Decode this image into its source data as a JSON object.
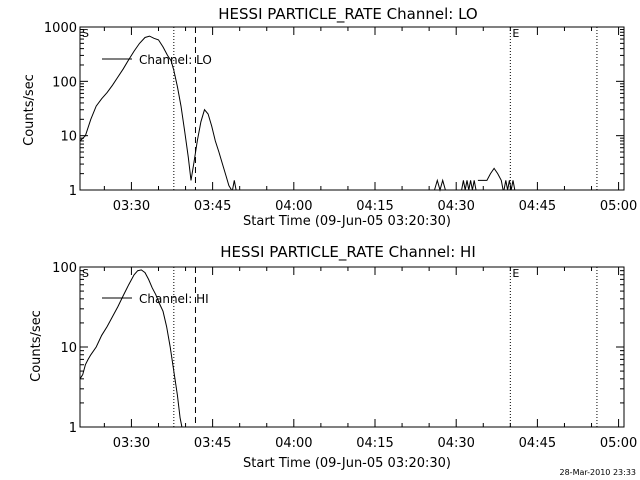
{
  "footer": {
    "timestamp": "28-Mar-2010 23:33"
  },
  "chart_data": [
    {
      "type": "line",
      "title": "HESSI PARTICLE_RATE Channel: LO",
      "xlabel": "Start Time (09-Jun-05 03:20:30)",
      "ylabel": "Counts/sec",
      "y_scale": "log",
      "ylim": [
        1,
        1000
      ],
      "y_ticks": [
        1,
        10,
        100,
        1000
      ],
      "y_tick_labels": [
        "1",
        "10",
        "100",
        "1000"
      ],
      "xlim": [
        "03:20:30",
        "05:01:00"
      ],
      "x_ticks": [
        "03:30",
        "03:45",
        "04:00",
        "04:15",
        "04:30",
        "04:45",
        "05:00"
      ],
      "legend": {
        "label": "Channel: LO",
        "placement": "top-left"
      },
      "markers": [
        {
          "label": "S",
          "x": "03:20:30",
          "style": "none"
        },
        {
          "x": "03:37:50",
          "style": "dotted"
        },
        {
          "x": "03:41:50",
          "style": "dashed"
        },
        {
          "label": "E",
          "x": "04:40:00",
          "style": "dotted"
        },
        {
          "x": "04:56:00",
          "style": "dotted"
        }
      ],
      "series": [
        {
          "segments": [
            [
              [
                "03:20:30",
                8
              ],
              [
                "03:21:30",
                10
              ],
              [
                "03:22:30",
                20
              ],
              [
                "03:23:30",
                35
              ],
              [
                "03:24:30",
                48
              ],
              [
                "03:25:30",
                62
              ],
              [
                "03:26:30",
                85
              ],
              [
                "03:27:30",
                120
              ],
              [
                "03:28:30",
                170
              ],
              [
                "03:29:30",
                250
              ],
              [
                "03:30:30",
                360
              ],
              [
                "03:31:30",
                500
              ],
              [
                "03:32:30",
                640
              ],
              [
                "03:33:20",
                680
              ],
              [
                "03:34:10",
                620
              ],
              [
                "03:35:00",
                580
              ],
              [
                "03:35:50",
                430
              ],
              [
                "03:36:40",
                300
              ],
              [
                "03:37:20",
                240
              ],
              [
                "03:37:50",
                160
              ],
              [
                "03:38:30",
                80
              ],
              [
                "03:39:10",
                35
              ],
              [
                "03:39:50",
                12
              ],
              [
                "03:40:30",
                4
              ],
              [
                "03:41:00",
                1.5
              ],
              [
                "03:41:30",
                3
              ],
              [
                "03:42:10",
                8
              ],
              [
                "03:42:50",
                18
              ],
              [
                "03:43:30",
                30
              ],
              [
                "03:44:10",
                25
              ],
              [
                "03:44:50",
                15
              ],
              [
                "03:45:30",
                8
              ],
              [
                "03:46:10",
                5
              ],
              [
                "03:46:50",
                3
              ],
              [
                "03:47:30",
                1.8
              ],
              [
                "03:48:00",
                1.2
              ],
              [
                "03:48:30",
                1
              ]
            ],
            [
              [
                "03:48:40",
                1
              ],
              [
                "03:49:00",
                1.5
              ],
              [
                "03:49:20",
                1
              ]
            ],
            [
              [
                "04:26:00",
                1
              ],
              [
                "04:26:30",
                1.5
              ],
              [
                "04:27:00",
                1
              ],
              [
                "04:27:30",
                1.5
              ],
              [
                "04:28:00",
                1
              ]
            ],
            [
              [
                "04:31:00",
                1
              ],
              [
                "04:31:20",
                1.5
              ],
              [
                "04:31:40",
                1
              ],
              [
                "04:32:00",
                1.5
              ],
              [
                "04:32:20",
                1
              ],
              [
                "04:32:40",
                1.5
              ],
              [
                "04:33:00",
                1
              ],
              [
                "04:33:20",
                1.5
              ],
              [
                "04:33:40",
                1
              ]
            ],
            [
              [
                "04:34:00",
                1.5
              ],
              [
                "04:35:40",
                1.5
              ],
              [
                "04:36:20",
                2
              ],
              [
                "04:37:00",
                2.5
              ],
              [
                "04:37:40",
                2
              ],
              [
                "04:38:20",
                1.5
              ],
              [
                "04:38:40",
                1
              ]
            ],
            [
              [
                "04:38:50",
                1
              ],
              [
                "04:39:10",
                1.5
              ],
              [
                "04:39:30",
                1
              ],
              [
                "04:39:50",
                1.5
              ],
              [
                "04:40:10",
                1
              ],
              [
                "04:40:30",
                1.5
              ],
              [
                "04:40:50",
                1
              ]
            ]
          ]
        }
      ]
    },
    {
      "type": "line",
      "title": "HESSI PARTICLE_RATE Channel: HI",
      "xlabel": "Start Time (09-Jun-05 03:20:30)",
      "ylabel": "Counts/sec",
      "y_scale": "log",
      "ylim": [
        1,
        100
      ],
      "y_ticks": [
        1,
        10,
        100
      ],
      "y_tick_labels": [
        "1",
        "10",
        "100"
      ],
      "xlim": [
        "03:20:30",
        "05:01:00"
      ],
      "x_ticks": [
        "03:30",
        "03:45",
        "04:00",
        "04:15",
        "04:30",
        "04:45",
        "05:00"
      ],
      "legend": {
        "label": "Channel: HI",
        "placement": "top-left"
      },
      "markers": [
        {
          "label": "S",
          "x": "03:20:30",
          "style": "none"
        },
        {
          "x": "03:37:50",
          "style": "dotted"
        },
        {
          "x": "03:41:50",
          "style": "dashed"
        },
        {
          "label": "E",
          "x": "04:40:00",
          "style": "dotted"
        },
        {
          "x": "04:56:00",
          "style": "dotted"
        }
      ],
      "series": [
        {
          "segments": [
            [
              [
                "03:20:30",
                4
              ],
              [
                "03:21:00",
                4.5
              ],
              [
                "03:21:30",
                6
              ],
              [
                "03:22:00",
                7
              ],
              [
                "03:22:30",
                8
              ],
              [
                "03:23:30",
                10
              ],
              [
                "03:24:30",
                14
              ],
              [
                "03:25:30",
                18
              ],
              [
                "03:26:30",
                24
              ],
              [
                "03:27:30",
                32
              ],
              [
                "03:28:30",
                44
              ],
              [
                "03:29:30",
                60
              ],
              [
                "03:30:30",
                80
              ],
              [
                "03:31:10",
                90
              ],
              [
                "03:31:50",
                92
              ],
              [
                "03:32:30",
                85
              ],
              [
                "03:33:10",
                70
              ],
              [
                "03:33:50",
                55
              ],
              [
                "03:34:30",
                45
              ],
              [
                "03:35:10",
                35
              ],
              [
                "03:35:50",
                28
              ],
              [
                "03:36:30",
                18
              ],
              [
                "03:37:10",
                10
              ],
              [
                "03:37:50",
                5
              ],
              [
                "03:38:30",
                2.5
              ],
              [
                "03:39:00",
                1.3
              ],
              [
                "03:39:20",
                1
              ]
            ]
          ]
        }
      ]
    }
  ]
}
